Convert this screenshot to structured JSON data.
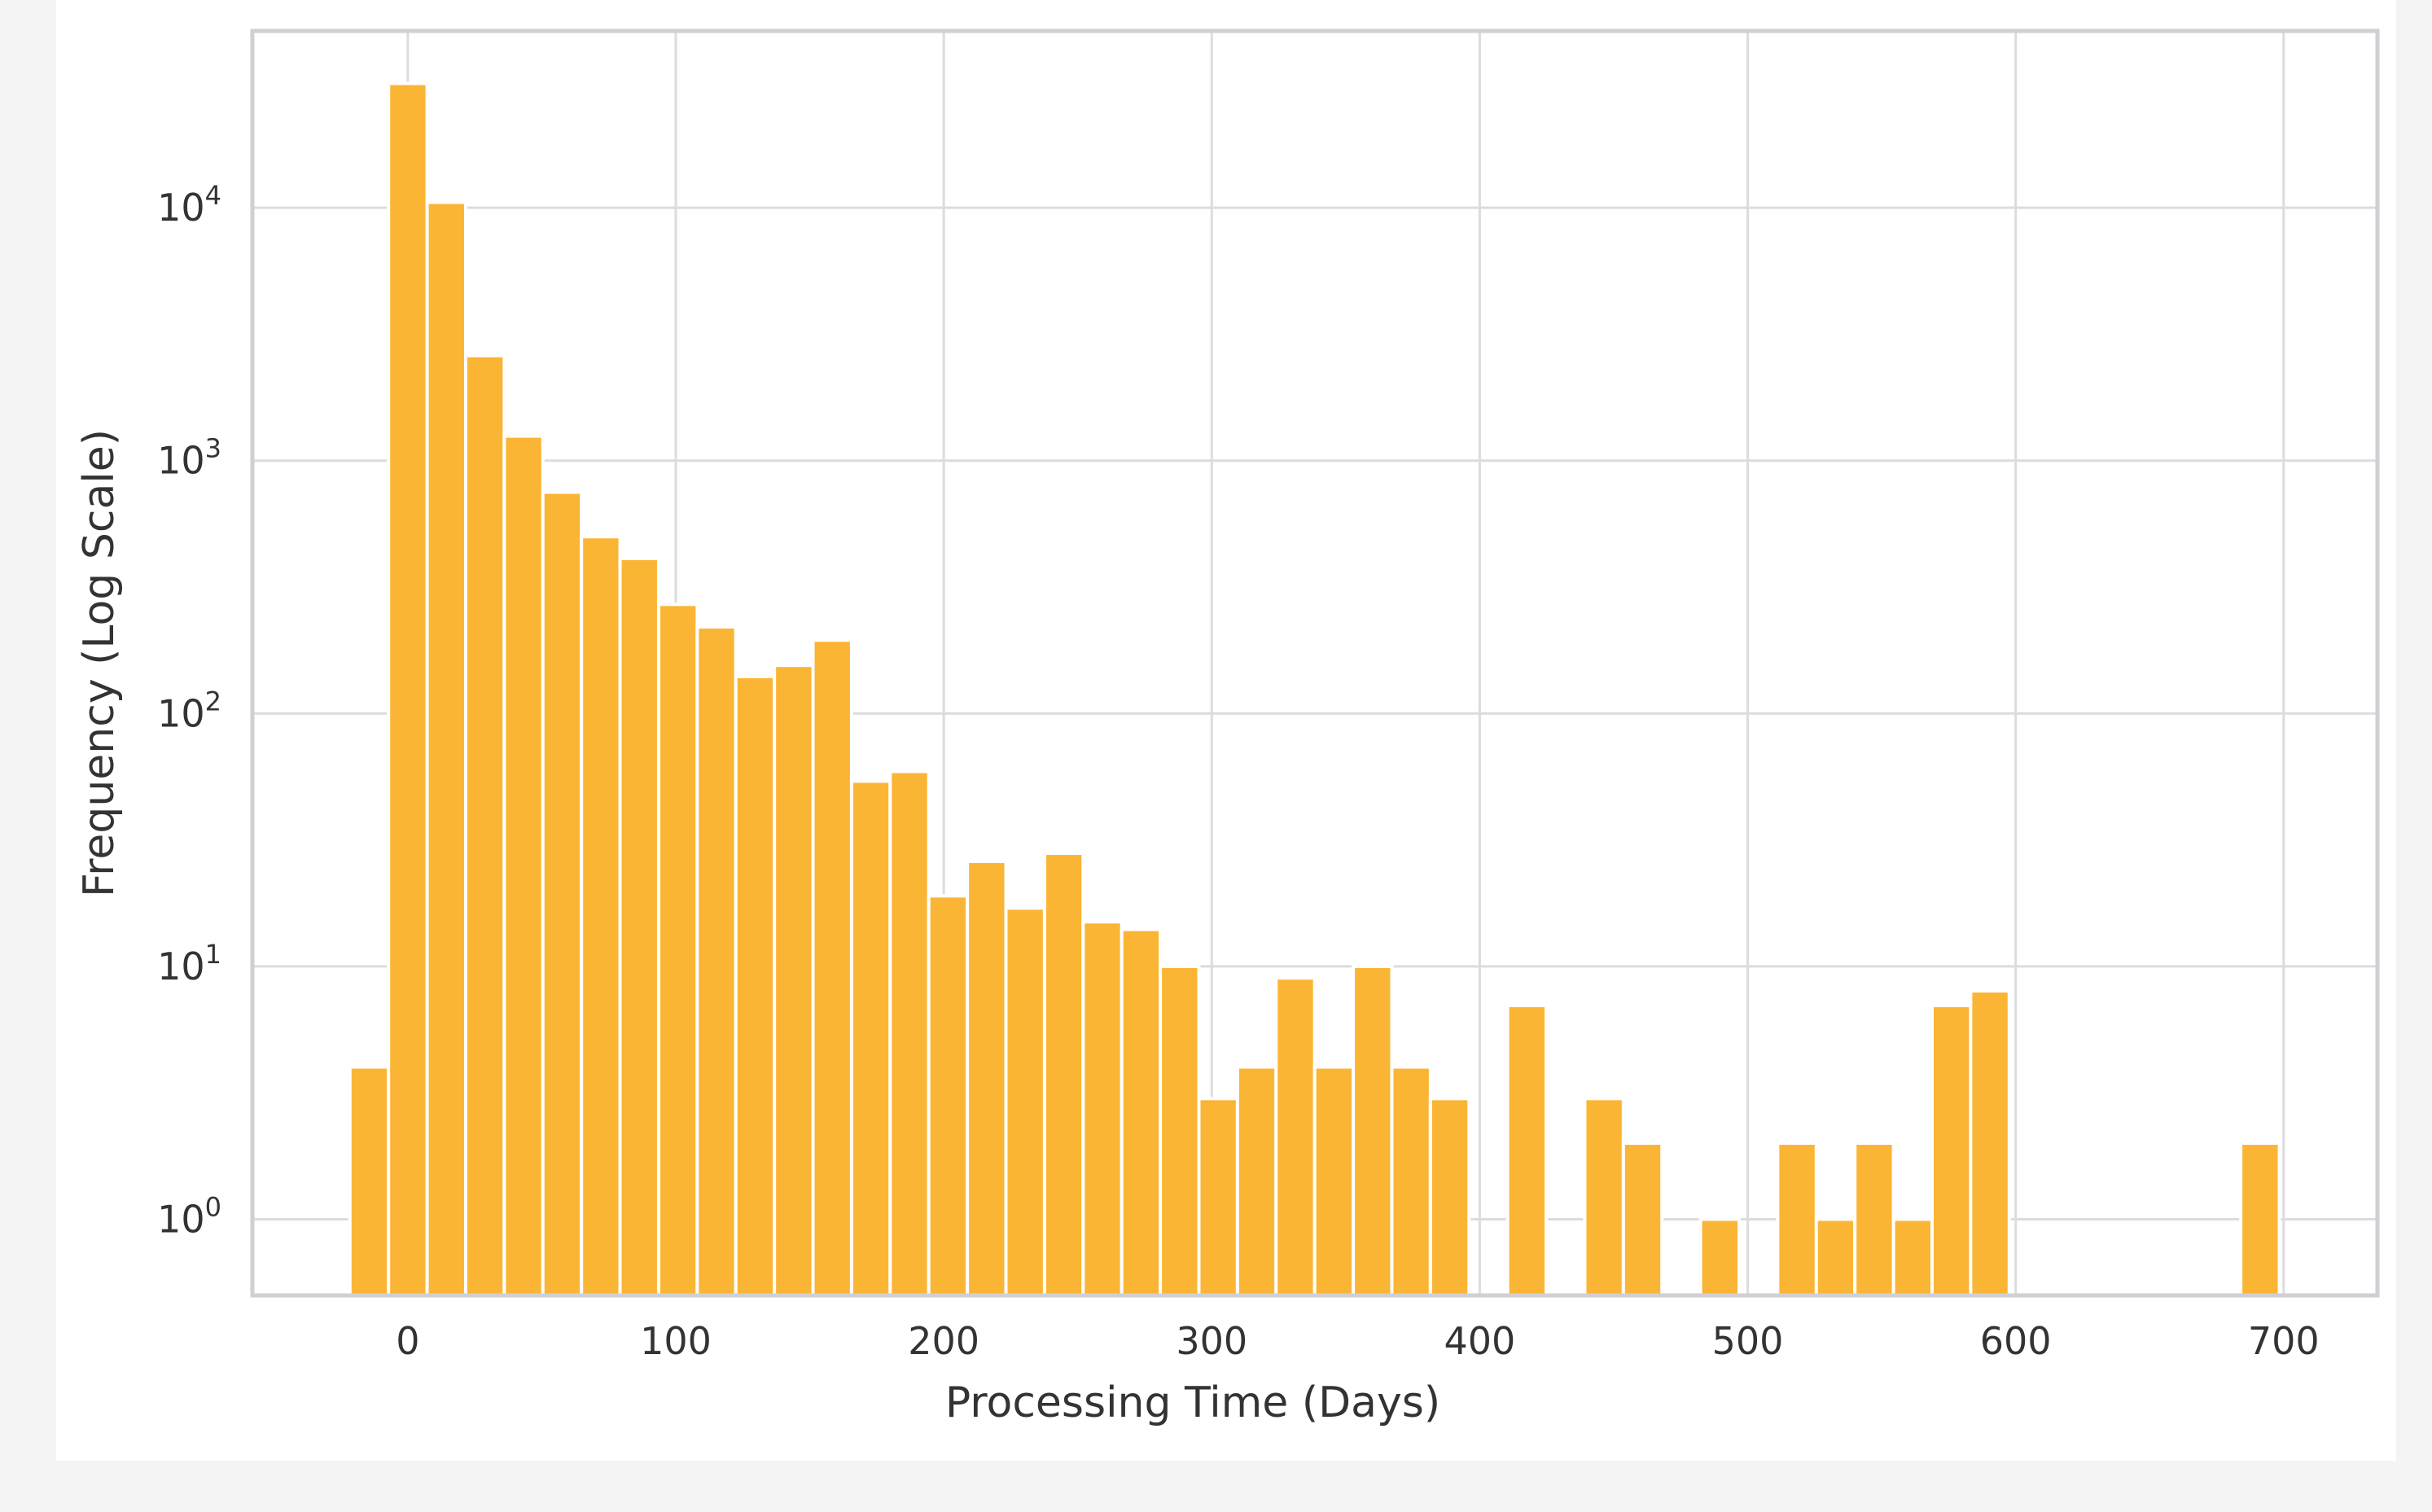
{
  "chart_data": {
    "type": "bar",
    "title": "",
    "xlabel": "Processing Time (Days)",
    "ylabel": "Frequency (Log Scale)",
    "y_scale": "log",
    "xlim": [
      -58,
      735
    ],
    "ylim": [
      0.5,
      50000
    ],
    "grid": true,
    "legend": "none",
    "bar_color": "#fbb534",
    "bin_width": 14.4,
    "x_ticks": [
      {
        "value": 0,
        "label": "0"
      },
      {
        "value": 100,
        "label": "100"
      },
      {
        "value": 200,
        "label": "200"
      },
      {
        "value": 300,
        "label": "300"
      },
      {
        "value": 400,
        "label": "400"
      },
      {
        "value": 500,
        "label": "500"
      },
      {
        "value": 600,
        "label": "600"
      },
      {
        "value": 700,
        "label": "700"
      }
    ],
    "y_ticks": [
      {
        "value": 1,
        "base": "10",
        "exp": "0"
      },
      {
        "value": 10,
        "base": "10",
        "exp": "1"
      },
      {
        "value": 100,
        "base": "10",
        "exp": "2"
      },
      {
        "value": 1000,
        "base": "10",
        "exp": "3"
      },
      {
        "value": 10000,
        "base": "10",
        "exp": "4"
      }
    ],
    "bins": [
      {
        "x": -14.4,
        "value": 4
      },
      {
        "x": 0.0,
        "value": 31000
      },
      {
        "x": 14.4,
        "value": 10500
      },
      {
        "x": 28.8,
        "value": 2600
      },
      {
        "x": 43.2,
        "value": 1250
      },
      {
        "x": 57.6,
        "value": 750
      },
      {
        "x": 72.0,
        "value": 500
      },
      {
        "x": 86.4,
        "value": 410
      },
      {
        "x": 100.8,
        "value": 270
      },
      {
        "x": 115.2,
        "value": 220
      },
      {
        "x": 129.6,
        "value": 140
      },
      {
        "x": 144.0,
        "value": 155
      },
      {
        "x": 158.4,
        "value": 195
      },
      {
        "x": 172.8,
        "value": 54
      },
      {
        "x": 187.2,
        "value": 59
      },
      {
        "x": 201.6,
        "value": 19
      },
      {
        "x": 216.0,
        "value": 26
      },
      {
        "x": 230.4,
        "value": 17
      },
      {
        "x": 244.8,
        "value": 28
      },
      {
        "x": 259.2,
        "value": 15
      },
      {
        "x": 273.6,
        "value": 14
      },
      {
        "x": 288.0,
        "value": 10
      },
      {
        "x": 302.4,
        "value": 3
      },
      {
        "x": 316.8,
        "value": 4
      },
      {
        "x": 331.2,
        "value": 9
      },
      {
        "x": 345.6,
        "value": 4
      },
      {
        "x": 360.0,
        "value": 10
      },
      {
        "x": 374.4,
        "value": 4
      },
      {
        "x": 388.8,
        "value": 3
      },
      {
        "x": 417.6,
        "value": 7
      },
      {
        "x": 446.4,
        "value": 3
      },
      {
        "x": 460.8,
        "value": 2
      },
      {
        "x": 489.6,
        "value": 1
      },
      {
        "x": 518.4,
        "value": 2
      },
      {
        "x": 532.8,
        "value": 1
      },
      {
        "x": 547.2,
        "value": 2
      },
      {
        "x": 561.6,
        "value": 1
      },
      {
        "x": 576.0,
        "value": 7
      },
      {
        "x": 590.4,
        "value": 8
      },
      {
        "x": 691.2,
        "value": 2
      }
    ]
  }
}
